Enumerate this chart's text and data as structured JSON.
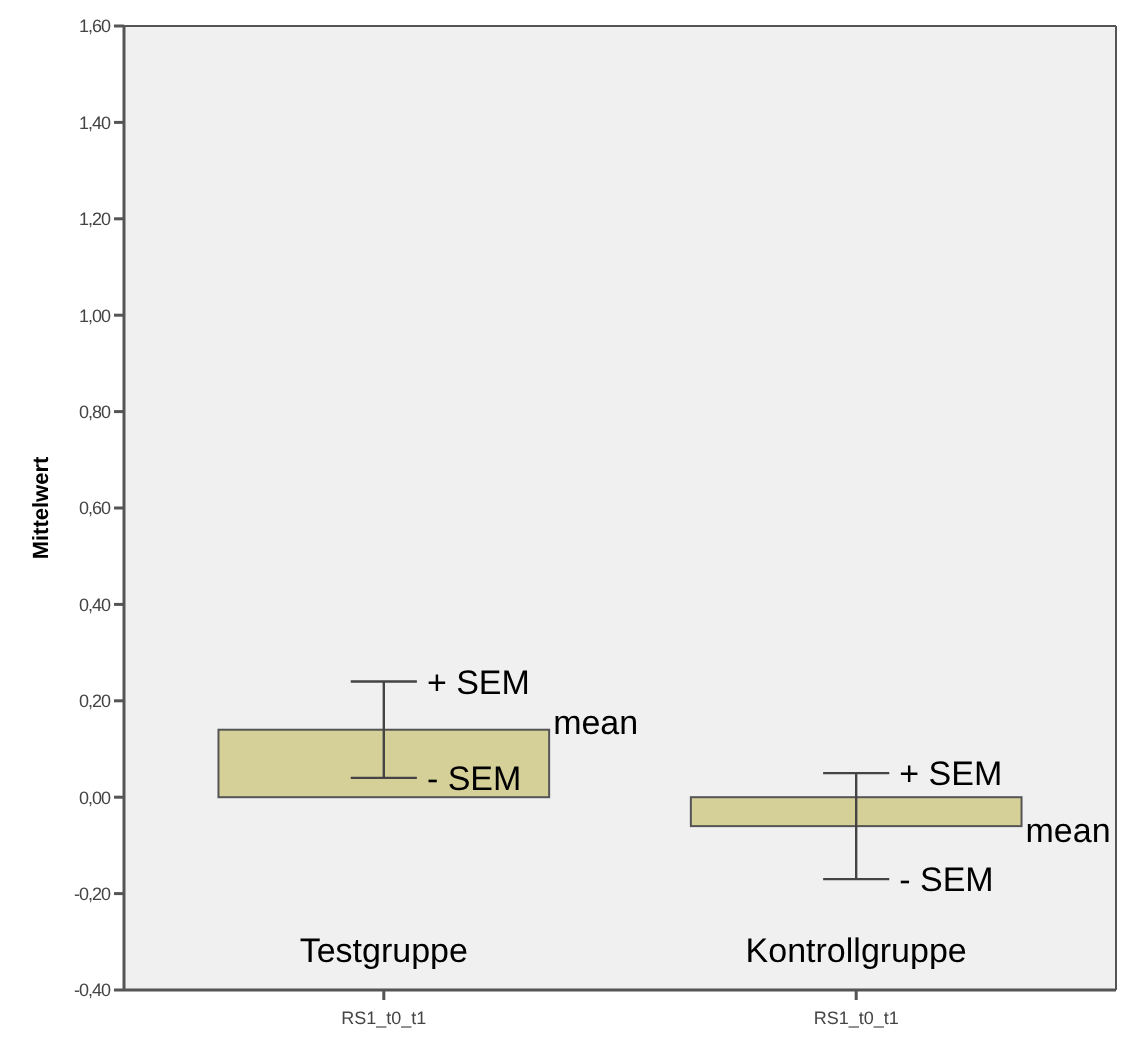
{
  "chart_data": {
    "type": "bar",
    "ylabel": "Mittelwert",
    "categories": [
      "RS1_t0_t1",
      "RS1_t0_t1"
    ],
    "values": [
      0.14,
      -0.06
    ],
    "errors": [
      [
        0.04,
        0.24
      ],
      [
        -0.17,
        0.05
      ]
    ],
    "color": "#d5cf98",
    "ylim": [
      -0.4,
      1.6
    ],
    "yticks": [
      {
        "value": -0.4,
        "label": "-0,40"
      },
      {
        "value": -0.2,
        "label": "-0,20"
      },
      {
        "value": 0,
        "label": "0,00"
      },
      {
        "value": 0.2,
        "label": "0,20"
      },
      {
        "value": 0.4,
        "label": "0,40"
      },
      {
        "value": 0.6,
        "label": "0,60"
      },
      {
        "value": 0.8,
        "label": "0,80"
      },
      {
        "value": 1.0,
        "label": "1,00"
      },
      {
        "value": 1.2,
        "label": "1,20"
      },
      {
        "value": 1.4,
        "label": "1,40"
      },
      {
        "value": 1.6,
        "label": "1,60"
      }
    ],
    "grid": false,
    "annotations": [
      "+ SEM",
      "mean",
      "- SEM",
      "+ SEM",
      "mean",
      "- SEM",
      "Testgruppe",
      "Kontrollgruppe"
    ]
  }
}
